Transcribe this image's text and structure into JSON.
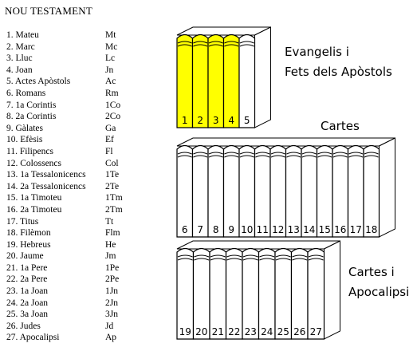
{
  "title": "NOU TESTAMENT",
  "books": [
    {
      "num": "1.",
      "name": "Mateu",
      "abbr": "Mt"
    },
    {
      "num": "2.",
      "name": "Marc",
      "abbr": "Mc"
    },
    {
      "num": "3.",
      "name": "Lluc",
      "abbr": "Lc"
    },
    {
      "num": "4.",
      "name": "Joan",
      "abbr": "Jn"
    },
    {
      "num": "5.",
      "name": "Actes Apòstols",
      "abbr": "Ac"
    },
    {
      "num": "6.",
      "name": "Romans",
      "abbr": "Rm"
    },
    {
      "num": "7.",
      "name": "1a Corintis",
      "abbr": "1Co"
    },
    {
      "num": "8.",
      "name": "2a Corintis",
      "abbr": "2Co"
    },
    {
      "num": "9.",
      "name": "Gàlates",
      "abbr": "Ga"
    },
    {
      "num": "10.",
      "name": "Efèsis",
      "abbr": "Ef"
    },
    {
      "num": "11.",
      "name": "Filipencs",
      "abbr": "Fl"
    },
    {
      "num": "12.",
      "name": "Colossencs",
      "abbr": "Col"
    },
    {
      "num": "13.",
      "name": "1a Tessalonicencs",
      "abbr": "1Te"
    },
    {
      "num": "14.",
      "name": "2a Tessalonicencs",
      "abbr": "2Te"
    },
    {
      "num": "15.",
      "name": "1a Timoteu",
      "abbr": "1Tm"
    },
    {
      "num": "16.",
      "name": "2a Timoteu",
      "abbr": "2Tm"
    },
    {
      "num": "17.",
      "name": "Titus",
      "abbr": "Tt"
    },
    {
      "num": "18.",
      "name": "Filèmon",
      "abbr": "Flm"
    },
    {
      "num": "19.",
      "name": "Hebreus",
      "abbr": "He"
    },
    {
      "num": "20.",
      "name": "Jaume",
      "abbr": "Jm"
    },
    {
      "num": "21.",
      "name": "1a Pere",
      "abbr": "1Pe"
    },
    {
      "num": "22.",
      "name": "2a Pere",
      "abbr": "2Pe"
    },
    {
      "num": "23.",
      "name": "1a Joan",
      "abbr": "1Jn"
    },
    {
      "num": "24.",
      "name": "2a Joan",
      "abbr": "2Jn"
    },
    {
      "num": "25.",
      "name": "3a Joan",
      "abbr": "3Jn"
    },
    {
      "num": "26.",
      "name": "Judes",
      "abbr": "Jd"
    },
    {
      "num": "27.",
      "name": "Apocalipsi",
      "abbr": "Ap"
    }
  ],
  "groups": [
    {
      "label_lines": [
        "Evangelis i",
        "Fets dels Apòstols"
      ],
      "spines": [
        "1",
        "2",
        "3",
        "4",
        "5"
      ],
      "highlighted": [
        "1",
        "2",
        "3",
        "4"
      ]
    },
    {
      "label_lines": [
        "Cartes"
      ],
      "spines": [
        "6",
        "7",
        "8",
        "9",
        "10",
        "11",
        "12",
        "13",
        "14",
        "15",
        "16",
        "17",
        "18"
      ],
      "highlighted": []
    },
    {
      "label_lines": [
        "Cartes i",
        "Apocalipsi"
      ],
      "spines": [
        "19",
        "20",
        "21",
        "22",
        "23",
        "24",
        "25",
        "26",
        "27"
      ],
      "highlighted": []
    }
  ],
  "colors": {
    "highlight": "#ffff00",
    "book": "#ffffff",
    "outline": "#000000"
  }
}
